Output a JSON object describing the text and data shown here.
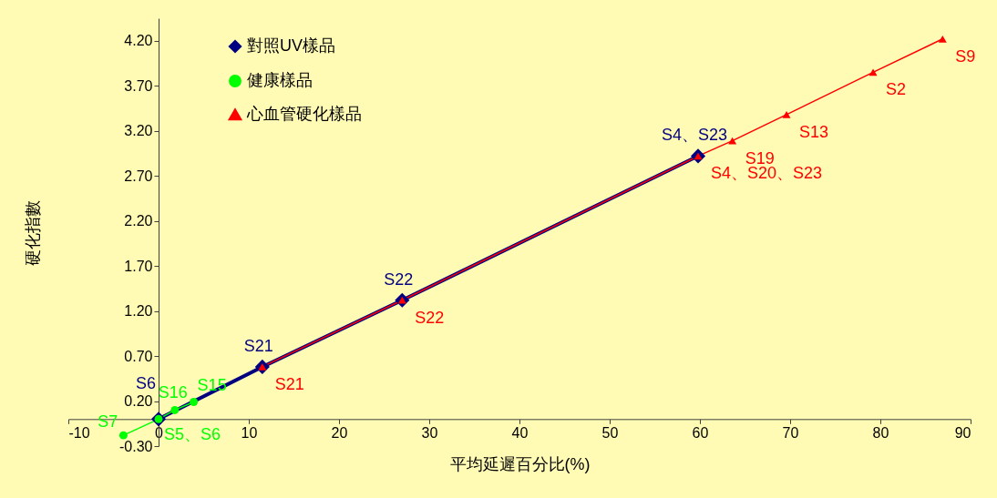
{
  "chart_data": {
    "type": "line",
    "xlabel": "平均延遲百分比(%)",
    "ylabel": "硬化指數",
    "xlim": [
      -10,
      90
    ],
    "xticks": [
      -10,
      0,
      10,
      20,
      30,
      40,
      50,
      60,
      70,
      80,
      90
    ],
    "ylim": [
      -0.3,
      4.45
    ],
    "yticks": [
      {
        "value": -0.3,
        "label": "-0.30"
      },
      {
        "value": 0.2,
        "label": "0.20"
      },
      {
        "value": 0.7,
        "label": "0.70"
      },
      {
        "value": 1.2,
        "label": "1.20"
      },
      {
        "value": 1.7,
        "label": "1.70"
      },
      {
        "value": 2.2,
        "label": "2.20"
      },
      {
        "value": 2.7,
        "label": "2.70"
      },
      {
        "value": 3.2,
        "label": "3.20"
      },
      {
        "value": 3.7,
        "label": "3.70"
      },
      {
        "value": 4.2,
        "label": "4.20"
      }
    ],
    "grid": false,
    "legend": "top left",
    "series": [
      {
        "name": "對照UV樣品",
        "color": "#000080",
        "marker": "diamond",
        "x": [
          0,
          11.5,
          27.0,
          59.8
        ],
        "values": [
          0,
          0.58,
          1.32,
          2.92
        ],
        "value_labels": [
          "S6",
          "S21",
          "S22",
          "S4、S23"
        ]
      },
      {
        "name": "健康樣品",
        "color": "#00ff00",
        "marker": "circle",
        "x": [
          -3.9,
          0,
          1.8,
          3.9
        ],
        "values": [
          -0.18,
          0,
          0.1,
          0.19
        ],
        "value_labels": [
          "S7",
          "S5、S6",
          "S16",
          "S15"
        ]
      },
      {
        "name": "心血管硬化樣品",
        "color": "#ff0000",
        "marker": "triangle",
        "x": [
          11.5,
          27.0,
          59.8,
          63.6,
          69.6,
          79.2,
          86.9
        ],
        "values": [
          0.58,
          1.32,
          2.92,
          3.09,
          3.38,
          3.85,
          4.22
        ],
        "value_labels": [
          "S21",
          "S22",
          "S4、S20、S23",
          "S19",
          "S13",
          "S2",
          "S9"
        ]
      }
    ]
  }
}
